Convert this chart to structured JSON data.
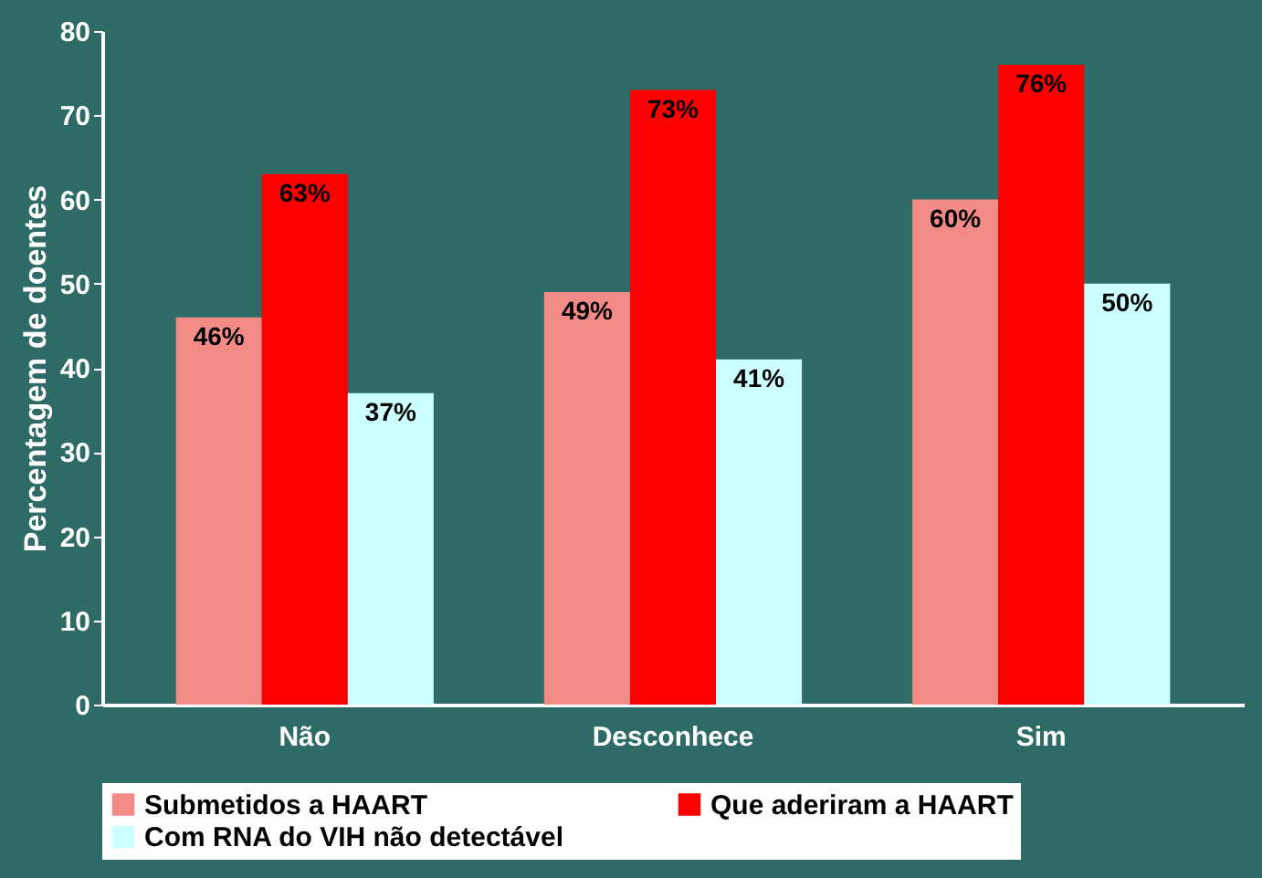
{
  "chart_data": {
    "type": "bar",
    "ylabel": "Percentagem de doentes",
    "categories": [
      "Não",
      "Desconhece",
      "Sim"
    ],
    "series": [
      {
        "name": "Submetidos a HAART",
        "color": "#f28b85",
        "values": [
          46,
          49,
          60
        ],
        "value_labels": [
          "46%",
          "49%",
          "60%"
        ]
      },
      {
        "name": "Que aderiram a HAART",
        "color": "#ff0000",
        "values": [
          63,
          73,
          76
        ],
        "value_labels": [
          "63%",
          "73%",
          "76%"
        ]
      },
      {
        "name": "Com RNA do VIH não detectável",
        "color": "#ccffff",
        "values": [
          37,
          41,
          50
        ],
        "value_labels": [
          "37%",
          "41%",
          "50%"
        ]
      }
    ],
    "ylim": [
      0,
      80
    ],
    "yticks": [
      0,
      10,
      20,
      30,
      40,
      50,
      60,
      70,
      80
    ],
    "grid": false,
    "legend": "bottom"
  }
}
